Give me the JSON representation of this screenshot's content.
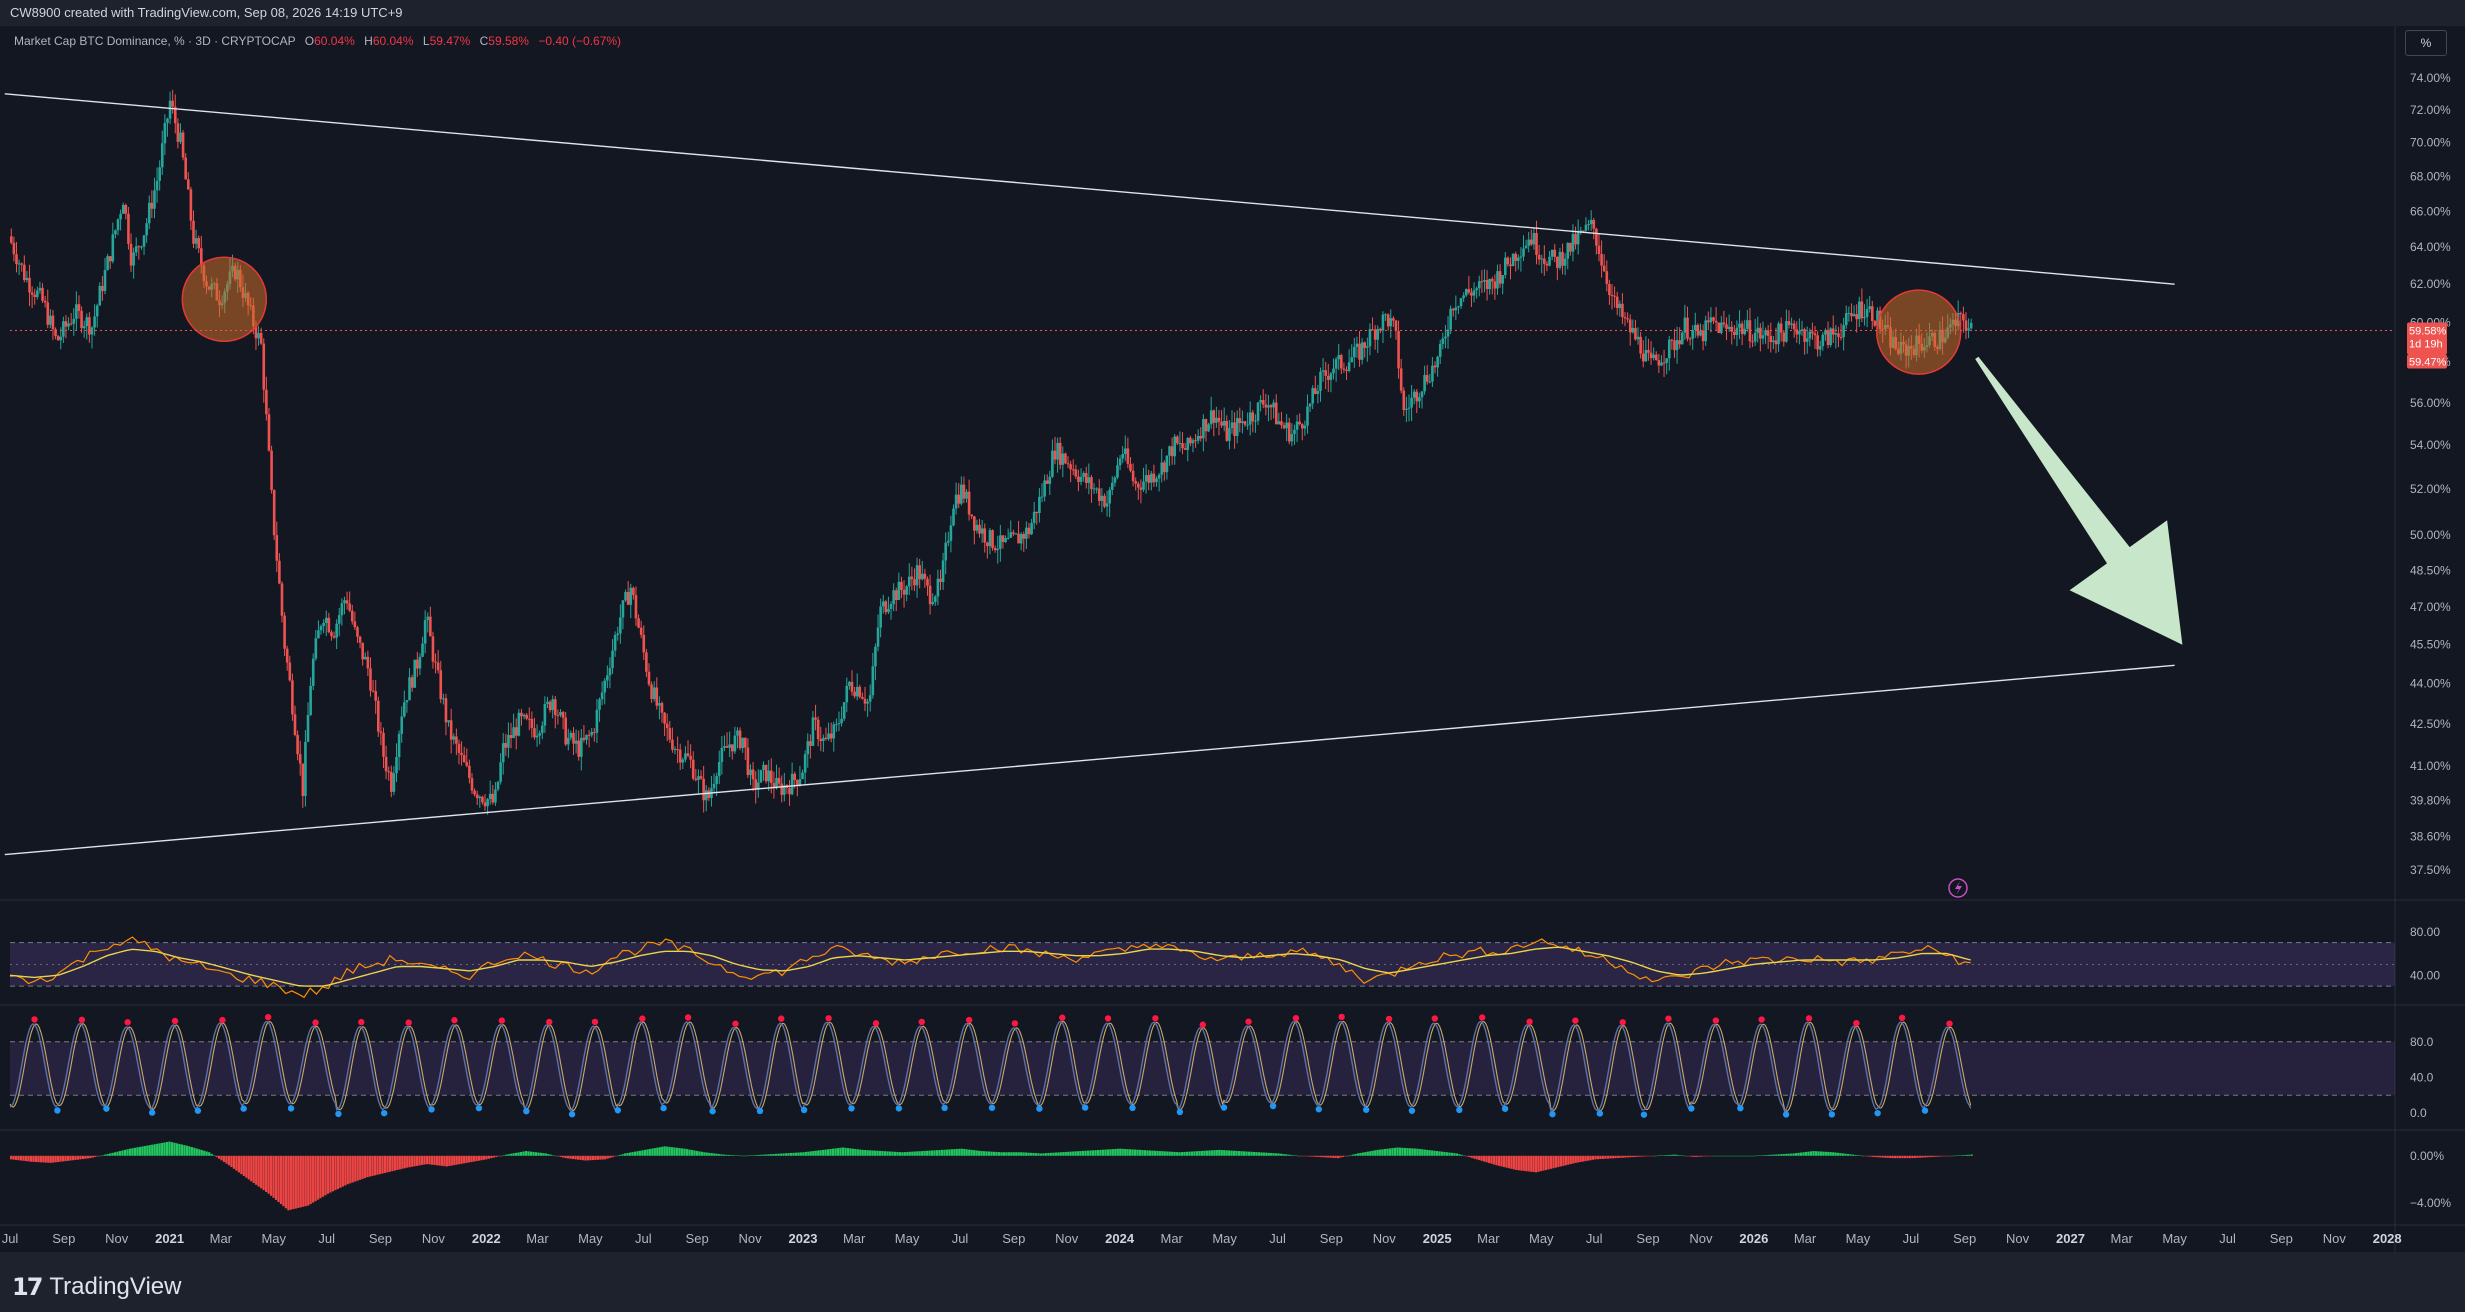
{
  "header": {
    "attribution": "CW8900 created with TradingView.com, Sep 08, 2026 14:19 UTC+9"
  },
  "legend": {
    "symbol": "Market Cap BTC Dominance, % · 3D · CRYPTOCAP",
    "o_label": "O",
    "o_value": "60.04%",
    "h_label": "H",
    "h_value": "60.04%",
    "l_label": "L",
    "l_value": "59.47%",
    "c_label": "C",
    "c_value": "59.58%",
    "change": "−0.40 (−0.67%)"
  },
  "scale_button": "%",
  "footer": {
    "brand": "TradingView",
    "mark": "17"
  },
  "colors": {
    "background": "#131722",
    "up": "#26a69a",
    "down": "#ef5350",
    "rsi_line": "#ff8f00",
    "rsi_ma": "#e8d44d",
    "stoch_k": "#5d6fa3",
    "stoch_d": "#c9a96a",
    "hist_up": "#22c55e",
    "hist_down": "#ef4444",
    "arrow": "#c8e6c9"
  },
  "chart_data": [
    {
      "type": "candlestick",
      "title": "Market Cap BTC Dominance, % · 3D · CRYPTOCAP",
      "y_scale": "log",
      "ylim": [
        37.5,
        74.0
      ],
      "y_ticks": [
        "74.00%",
        "72.00%",
        "70.00%",
        "68.00%",
        "66.00%",
        "64.00%",
        "62.00%",
        "60.00%",
        "58.00%",
        "56.00%",
        "54.00%",
        "52.00%",
        "50.00%",
        "48.50%",
        "47.00%",
        "45.50%",
        "44.00%",
        "42.50%",
        "41.00%",
        "39.80%",
        "38.60%",
        "37.50%"
      ],
      "y_tick_values": [
        74,
        72,
        70,
        68,
        66,
        64,
        62,
        60,
        58,
        56,
        54,
        52,
        50,
        48.5,
        47,
        45.5,
        44,
        42.5,
        41,
        39.8,
        38.6,
        37.5
      ],
      "x_ticks": [
        "Jul",
        "Sep",
        "Nov",
        "2021",
        "Mar",
        "May",
        "Jul",
        "Sep",
        "Nov",
        "2022",
        "Mar",
        "May",
        "Jul",
        "Sep",
        "Nov",
        "2023",
        "Mar",
        "May",
        "Jul",
        "Sep",
        "Nov",
        "2024",
        "Mar",
        "May",
        "Jul",
        "Sep",
        "Nov",
        "2025",
        "Mar",
        "May",
        "Jul",
        "Sep",
        "Nov",
        "2026",
        "Mar",
        "May",
        "Jul",
        "Sep",
        "Nov",
        "2027",
        "Mar",
        "May",
        "Jul",
        "Sep",
        "Nov",
        "2028"
      ],
      "x_tick_values": [
        "2020-07-01",
        "2020-09-01",
        "2020-11-01",
        "2021-01-01",
        "2021-03-01",
        "2021-05-01",
        "2021-07-01",
        "2021-09-01",
        "2021-11-01",
        "2022-01-01",
        "2022-03-01",
        "2022-05-01",
        "2022-07-01",
        "2022-09-01",
        "2022-11-01",
        "2023-01-01",
        "2023-03-01",
        "2023-05-01",
        "2023-07-01",
        "2023-09-01",
        "2023-11-01",
        "2024-01-01",
        "2024-03-01",
        "2024-05-01",
        "2024-07-01",
        "2024-09-01",
        "2024-11-01",
        "2025-01-01",
        "2025-03-01",
        "2025-05-01",
        "2025-07-01",
        "2025-09-01",
        "2025-11-01",
        "2026-01-01",
        "2026-03-01",
        "2026-05-01",
        "2026-07-01",
        "2026-09-01",
        "2026-11-01",
        "2027-01-01",
        "2027-03-01",
        "2027-05-01",
        "2027-07-01",
        "2027-09-01",
        "2027-11-01",
        "2028-01-01"
      ],
      "xlim": [
        "2020-07-01",
        "2028-01-10"
      ],
      "price_path": [
        [
          "2020-07-01",
          64.6
        ],
        [
          "2020-07-20",
          62.4
        ],
        [
          "2020-08-10",
          61.0
        ],
        [
          "2020-08-25",
          59.0
        ],
        [
          "2020-09-15",
          60.5
        ],
        [
          "2020-10-05",
          59.8
        ],
        [
          "2020-10-25",
          63.5
        ],
        [
          "2020-11-10",
          66.8
        ],
        [
          "2020-11-20",
          63.2
        ],
        [
          "2020-12-05",
          65.0
        ],
        [
          "2020-12-20",
          68.0
        ],
        [
          "2021-01-03",
          72.5
        ],
        [
          "2021-01-15",
          70.0
        ],
        [
          "2021-01-30",
          64.5
        ],
        [
          "2021-02-15",
          62.0
        ],
        [
          "2021-03-01",
          61.3
        ],
        [
          "2021-03-20",
          62.8
        ],
        [
          "2021-04-05",
          60.5
        ],
        [
          "2021-04-18",
          58.8
        ],
        [
          "2021-05-01",
          51.0
        ],
        [
          "2021-05-15",
          45.5
        ],
        [
          "2021-05-25",
          43.0
        ],
        [
          "2021-06-05",
          40.2
        ],
        [
          "2021-06-15",
          44.5
        ],
        [
          "2021-06-28",
          46.8
        ],
        [
          "2021-07-10",
          46.0
        ],
        [
          "2021-07-25",
          47.5
        ],
        [
          "2021-08-05",
          45.8
        ],
        [
          "2021-08-20",
          44.5
        ],
        [
          "2021-09-05",
          41.5
        ],
        [
          "2021-09-15",
          40.4
        ],
        [
          "2021-09-28",
          43.2
        ],
        [
          "2021-10-15",
          44.8
        ],
        [
          "2021-10-25",
          46.6
        ],
        [
          "2021-11-05",
          44.6
        ],
        [
          "2021-11-20",
          42.3
        ],
        [
          "2021-12-05",
          41.2
        ],
        [
          "2021-12-20",
          40.2
        ],
        [
          "2022-01-01",
          39.9
        ],
        [
          "2022-01-12",
          39.7
        ],
        [
          "2022-01-22",
          41.6
        ],
        [
          "2022-02-10",
          42.6
        ],
        [
          "2022-03-01",
          42.3
        ],
        [
          "2022-03-20",
          43.5
        ],
        [
          "2022-04-05",
          42.0
        ],
        [
          "2022-04-20",
          41.6
        ],
        [
          "2022-05-05",
          42.2
        ],
        [
          "2022-05-20",
          44.2
        ],
        [
          "2022-06-05",
          46.5
        ],
        [
          "2022-06-18",
          47.8
        ],
        [
          "2022-06-28",
          46.0
        ],
        [
          "2022-07-10",
          44.0
        ],
        [
          "2022-07-25",
          42.5
        ],
        [
          "2022-08-10",
          41.6
        ],
        [
          "2022-08-25",
          41.2
        ],
        [
          "2022-09-05",
          40.4
        ],
        [
          "2022-09-15",
          39.8
        ],
        [
          "2022-09-25",
          41.0
        ],
        [
          "2022-10-10",
          41.8
        ],
        [
          "2022-10-25",
          42.0
        ],
        [
          "2022-11-05",
          40.2
        ],
        [
          "2022-11-20",
          40.8
        ],
        [
          "2022-12-05",
          40.2
        ],
        [
          "2022-12-20",
          40.4
        ],
        [
          "2023-01-01",
          40.8
        ],
        [
          "2023-01-15",
          42.5
        ],
        [
          "2023-01-28",
          41.8
        ],
        [
          "2023-02-10",
          42.3
        ],
        [
          "2023-02-25",
          44.0
        ],
        [
          "2023-03-10",
          43.8
        ],
        [
          "2023-03-20",
          43.2
        ],
        [
          "2023-04-01",
          46.8
        ],
        [
          "2023-04-15",
          47.5
        ],
        [
          "2023-05-01",
          47.8
        ],
        [
          "2023-05-15",
          48.5
        ],
        [
          "2023-05-28",
          47.5
        ],
        [
          "2023-06-10",
          47.8
        ],
        [
          "2023-06-25",
          51.5
        ],
        [
          "2023-07-05",
          52.0
        ],
        [
          "2023-07-20",
          50.5
        ],
        [
          "2023-08-05",
          49.8
        ],
        [
          "2023-08-20",
          49.5
        ],
        [
          "2023-09-05",
          49.8
        ],
        [
          "2023-09-20",
          50.2
        ],
        [
          "2023-10-05",
          51.8
        ],
        [
          "2023-10-20",
          53.8
        ],
        [
          "2023-11-05",
          53.2
        ],
        [
          "2023-11-20",
          52.5
        ],
        [
          "2023-12-05",
          52.0
        ],
        [
          "2023-12-20",
          51.4
        ],
        [
          "2024-01-05",
          53.8
        ],
        [
          "2024-01-20",
          52.2
        ],
        [
          "2024-02-05",
          52.5
        ],
        [
          "2024-02-20",
          53.0
        ],
        [
          "2024-03-05",
          54.0
        ],
        [
          "2024-03-20",
          53.8
        ],
        [
          "2024-04-05",
          54.8
        ],
        [
          "2024-04-20",
          55.5
        ],
        [
          "2024-05-05",
          54.5
        ],
        [
          "2024-05-20",
          55.0
        ],
        [
          "2024-06-05",
          55.5
        ],
        [
          "2024-06-20",
          56.2
        ],
        [
          "2024-07-05",
          55.0
        ],
        [
          "2024-07-20",
          54.5
        ],
        [
          "2024-08-05",
          55.5
        ],
        [
          "2024-08-20",
          57.0
        ],
        [
          "2024-09-05",
          57.8
        ],
        [
          "2024-09-20",
          58.0
        ],
        [
          "2024-10-05",
          58.5
        ],
        [
          "2024-10-20",
          59.5
        ],
        [
          "2024-11-05",
          60.3
        ],
        [
          "2024-11-15",
          59.5
        ],
        [
          "2024-11-25",
          55.5
        ],
        [
          "2024-12-05",
          56.2
        ],
        [
          "2024-12-20",
          57.2
        ],
        [
          "2025-01-05",
          58.2
        ],
        [
          "2025-01-20",
          61.0
        ],
        [
          "2025-02-05",
          61.5
        ],
        [
          "2025-02-20",
          61.8
        ],
        [
          "2025-03-05",
          62.0
        ],
        [
          "2025-03-20",
          62.8
        ],
        [
          "2025-04-05",
          63.8
        ],
        [
          "2025-04-20",
          64.6
        ],
        [
          "2025-05-05",
          63.5
        ],
        [
          "2025-05-20",
          63.2
        ],
        [
          "2025-06-05",
          64.0
        ],
        [
          "2025-06-20",
          64.8
        ],
        [
          "2025-07-01",
          65.2
        ],
        [
          "2025-07-10",
          63.5
        ],
        [
          "2025-07-25",
          61.0
        ],
        [
          "2025-08-10",
          59.8
        ],
        [
          "2025-08-25",
          58.8
        ],
        [
          "2025-09-05",
          57.8
        ],
        [
          "2025-09-15",
          58.2
        ],
        [
          "2025-10-01",
          58.8
        ],
        [
          "2025-10-15",
          59.8
        ],
        [
          "2025-11-01",
          59.2
        ],
        [
          "2025-11-15",
          60.0
        ],
        [
          "2025-12-01",
          59.6
        ],
        [
          "2025-12-15",
          59.8
        ],
        [
          "2026-01-01",
          59.5
        ],
        [
          "2026-01-20",
          59.2
        ],
        [
          "2026-02-05",
          59.5
        ],
        [
          "2026-02-20",
          59.8
        ],
        [
          "2026-03-05",
          59.4
        ],
        [
          "2026-03-20",
          59.0
        ],
        [
          "2026-04-05",
          59.4
        ],
        [
          "2026-04-20",
          60.0
        ],
        [
          "2026-05-05",
          60.8
        ],
        [
          "2026-05-20",
          60.5
        ],
        [
          "2026-06-05",
          59.3
        ],
        [
          "2026-06-20",
          58.5
        ],
        [
          "2026-07-05",
          58.8
        ],
        [
          "2026-07-20",
          59.0
        ],
        [
          "2026-08-05",
          59.2
        ],
        [
          "2026-08-20",
          59.8
        ],
        [
          "2026-09-01",
          60.2
        ],
        [
          "2026-09-08",
          59.58
        ]
      ],
      "last_price": 59.58,
      "last_price_label": "59.58%",
      "countdown_label": "1d 19h",
      "low_label": "59.47%",
      "upper_trendline": [
        [
          "2020-06-25",
          73.0
        ],
        [
          "2027-05-01",
          62.0
        ]
      ],
      "lower_trendline": [
        [
          "2020-06-25",
          38.0
        ],
        [
          "2027-05-01",
          44.7
        ]
      ],
      "highlight_circles": [
        [
          "2021-03-05",
          61.2
        ],
        [
          "2026-07-10",
          59.5
        ]
      ],
      "forecast_arrow": {
        "from": [
          "2026-09-15",
          58.2
        ],
        "to": [
          "2027-05-10",
          45.5
        ]
      }
    },
    {
      "type": "line",
      "title": "RSI",
      "ylim": [
        20,
        100
      ],
      "y_ticks": [
        "80.00",
        "40.00"
      ],
      "y_tick_values": [
        80,
        40
      ],
      "bands": [
        70,
        30
      ],
      "series": [
        {
          "values": [
            38,
            34,
            42,
            55,
            68,
            72,
            64,
            52,
            48,
            40,
            36,
            30,
            22,
            28,
            44,
            50,
            56,
            48,
            44,
            40,
            52,
            60,
            54,
            48,
            44,
            58,
            64,
            70,
            62,
            52,
            42,
            40,
            44,
            56,
            64,
            60,
            54,
            52,
            58,
            62,
            64,
            66,
            62,
            58,
            56,
            60,
            62,
            70,
            64,
            58,
            54,
            56,
            60,
            62,
            58,
            48,
            36,
            40,
            52,
            56,
            60,
            62,
            64,
            72,
            68,
            60,
            54,
            44,
            34,
            38,
            46,
            52,
            54,
            54,
            56,
            54,
            52,
            54,
            60,
            64,
            60,
            48
          ]
        },
        {
          "values": [
            40,
            38,
            40,
            48,
            58,
            64,
            62,
            56,
            52,
            46,
            40,
            35,
            30,
            30,
            36,
            42,
            48,
            48,
            46,
            44,
            48,
            54,
            54,
            52,
            48,
            52,
            58,
            62,
            62,
            58,
            50,
            45,
            44,
            48,
            56,
            58,
            56,
            54,
            56,
            58,
            60,
            62,
            62,
            60,
            58,
            58,
            60,
            64,
            64,
            62,
            58,
            56,
            58,
            60,
            58,
            54,
            46,
            42,
            46,
            50,
            54,
            58,
            60,
            64,
            66,
            62,
            58,
            52,
            44,
            40,
            42,
            46,
            50,
            52,
            54,
            54,
            54,
            54,
            56,
            60,
            60,
            54
          ]
        }
      ]
    },
    {
      "type": "line",
      "title": "Stoch RSI",
      "ylim": [
        -10,
        110
      ],
      "y_ticks": [
        "80.0",
        "40.0",
        "0.0"
      ],
      "y_tick_values": [
        80,
        40,
        0
      ],
      "bands": [
        80,
        20
      ],
      "cycles": 42
    },
    {
      "type": "bar",
      "title": "Momentum",
      "ylim": [
        -5.5,
        1.5
      ],
      "y_ticks": [
        "0.00%",
        "−4.00%"
      ],
      "y_tick_values": [
        0,
        -4
      ],
      "series": [
        {
          "values": [
            -0.3,
            -0.5,
            -0.6,
            -0.4,
            -0.2,
            0.2,
            0.6,
            0.9,
            1.2,
            0.8,
            0.3,
            -0.8,
            -2.0,
            -3.2,
            -4.6,
            -4.2,
            -3.2,
            -2.4,
            -1.8,
            -1.4,
            -1.0,
            -0.7,
            -0.9,
            -0.6,
            -0.3,
            0.1,
            0.4,
            0.2,
            -0.2,
            -0.4,
            -0.3,
            0.2,
            0.5,
            0.8,
            0.6,
            0.3,
            0.1,
            0.0,
            0.1,
            0.2,
            0.3,
            0.5,
            0.7,
            0.5,
            0.4,
            0.3,
            0.4,
            0.5,
            0.6,
            0.4,
            0.3,
            0.3,
            0.2,
            0.3,
            0.4,
            0.5,
            0.6,
            0.5,
            0.4,
            0.3,
            0.4,
            0.5,
            0.4,
            0.3,
            0.2,
            0.0,
            -0.1,
            -0.2,
            0.2,
            0.5,
            0.7,
            0.6,
            0.4,
            0.2,
            -0.3,
            -0.8,
            -1.2,
            -1.4,
            -1.0,
            -0.6,
            -0.3,
            -0.2,
            -0.1,
            0.0,
            0.1,
            -0.1,
            0.0,
            0.0,
            0.0,
            0.1,
            0.2,
            0.4,
            0.3,
            0.1,
            -0.1,
            -0.2,
            -0.2,
            -0.1,
            0.0,
            0.1
          ]
        }
      ]
    }
  ]
}
